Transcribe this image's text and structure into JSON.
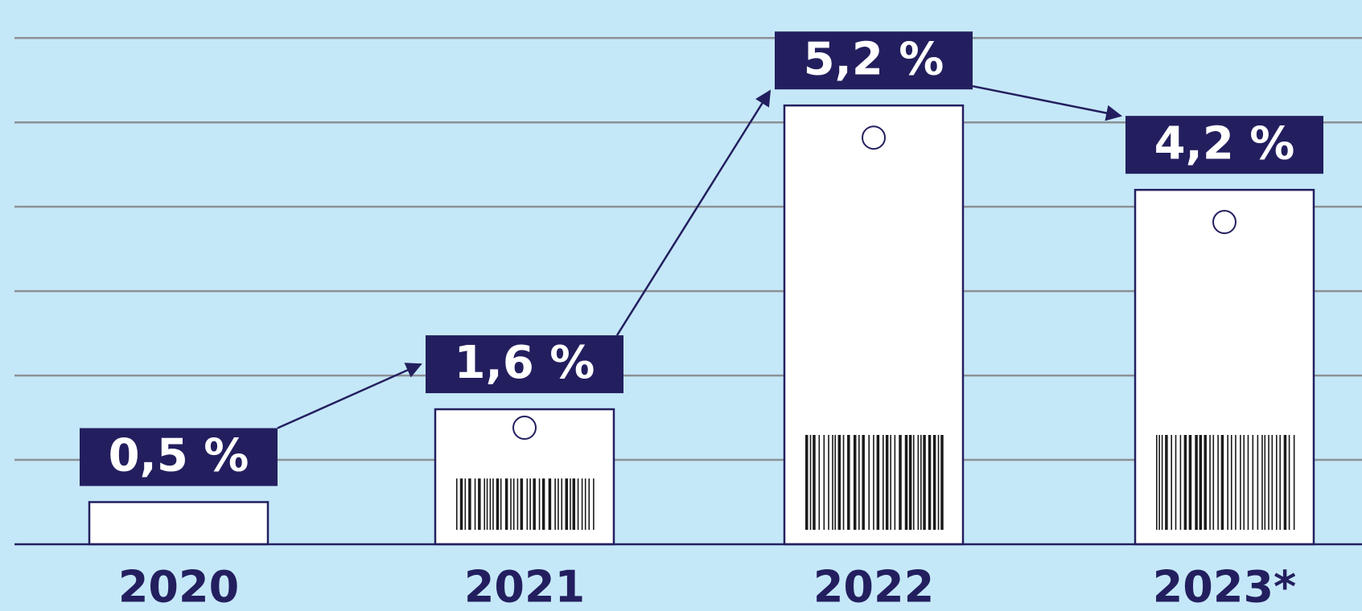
{
  "chart_data": {
    "type": "bar",
    "categories": [
      "2020",
      "2021",
      "2022",
      "2023*"
    ],
    "values": [
      0.5,
      1.6,
      5.2,
      4.2
    ],
    "value_labels": [
      "0,5 %",
      "1,6 %",
      "5,2 %",
      "4,2 %"
    ],
    "color": "#ffffff",
    "label_color": "#231f5f",
    "ylim": [
      0,
      6.45
    ],
    "yticks": [
      0,
      1,
      2,
      3,
      4,
      5,
      6
    ],
    "grid": true
  }
}
